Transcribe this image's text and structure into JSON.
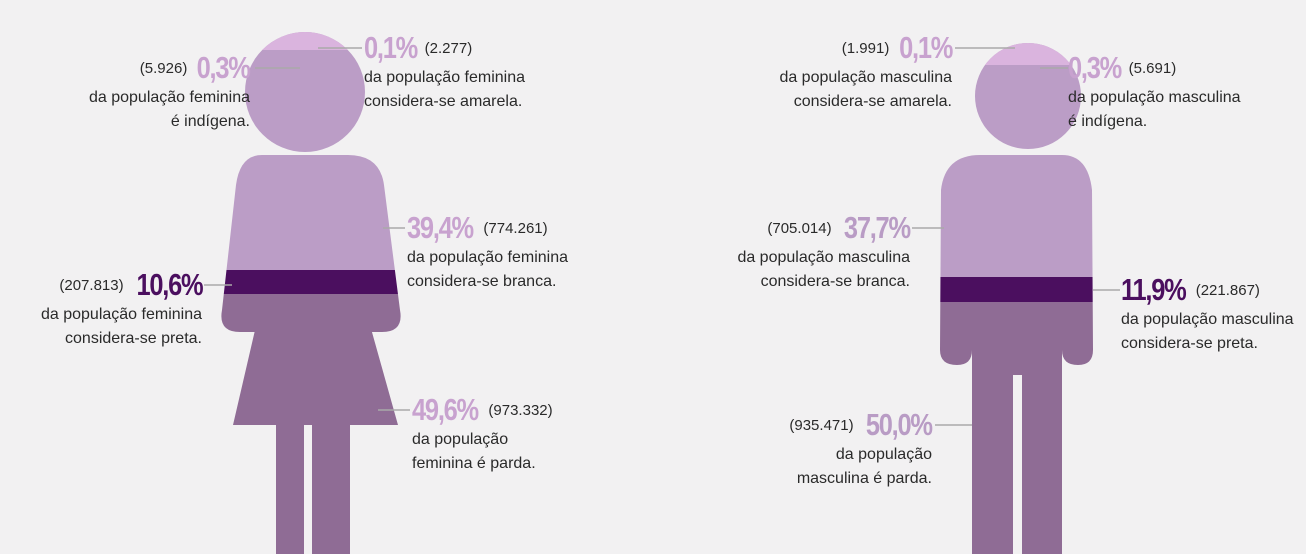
{
  "figures": [
    {
      "annotations": [
        {
          "count": "(5.926)",
          "percent": "0,3%",
          "lines": [
            "da população feminina",
            "é indígena."
          ]
        },
        {
          "count": "(2.277)",
          "percent": "0,1%",
          "lines": [
            "da população feminina",
            "considera-se amarela."
          ]
        },
        {
          "count": "(774.261)",
          "percent": "39,4%",
          "lines": [
            "da população feminina",
            "considera-se branca."
          ]
        },
        {
          "count": "(207.813)",
          "percent": "10,6%",
          "lines": [
            "da população feminina",
            "considera-se preta."
          ]
        },
        {
          "count": "(973.332)",
          "percent": "49,6%",
          "lines": [
            "da população",
            "feminina é parda."
          ]
        }
      ]
    },
    {
      "annotations": [
        {
          "count": "(1.991)",
          "percent": "0,1%",
          "lines": [
            "da população masculina",
            "considera-se amarela."
          ]
        },
        {
          "count": "(5.691)",
          "percent": "0,3%",
          "lines": [
            "da população masculina",
            "é indígena."
          ]
        },
        {
          "count": "(705.014)",
          "percent": "37,7%",
          "lines": [
            "da população masculina",
            "considera-se branca."
          ]
        },
        {
          "count": "(221.867)",
          "percent": "11,9%",
          "lines": [
            "da população masculina",
            "considera-se preta."
          ]
        },
        {
          "count": "(935.471)",
          "percent": "50,0%",
          "lines": [
            "da população",
            "masculina é parda."
          ]
        }
      ]
    }
  ]
}
